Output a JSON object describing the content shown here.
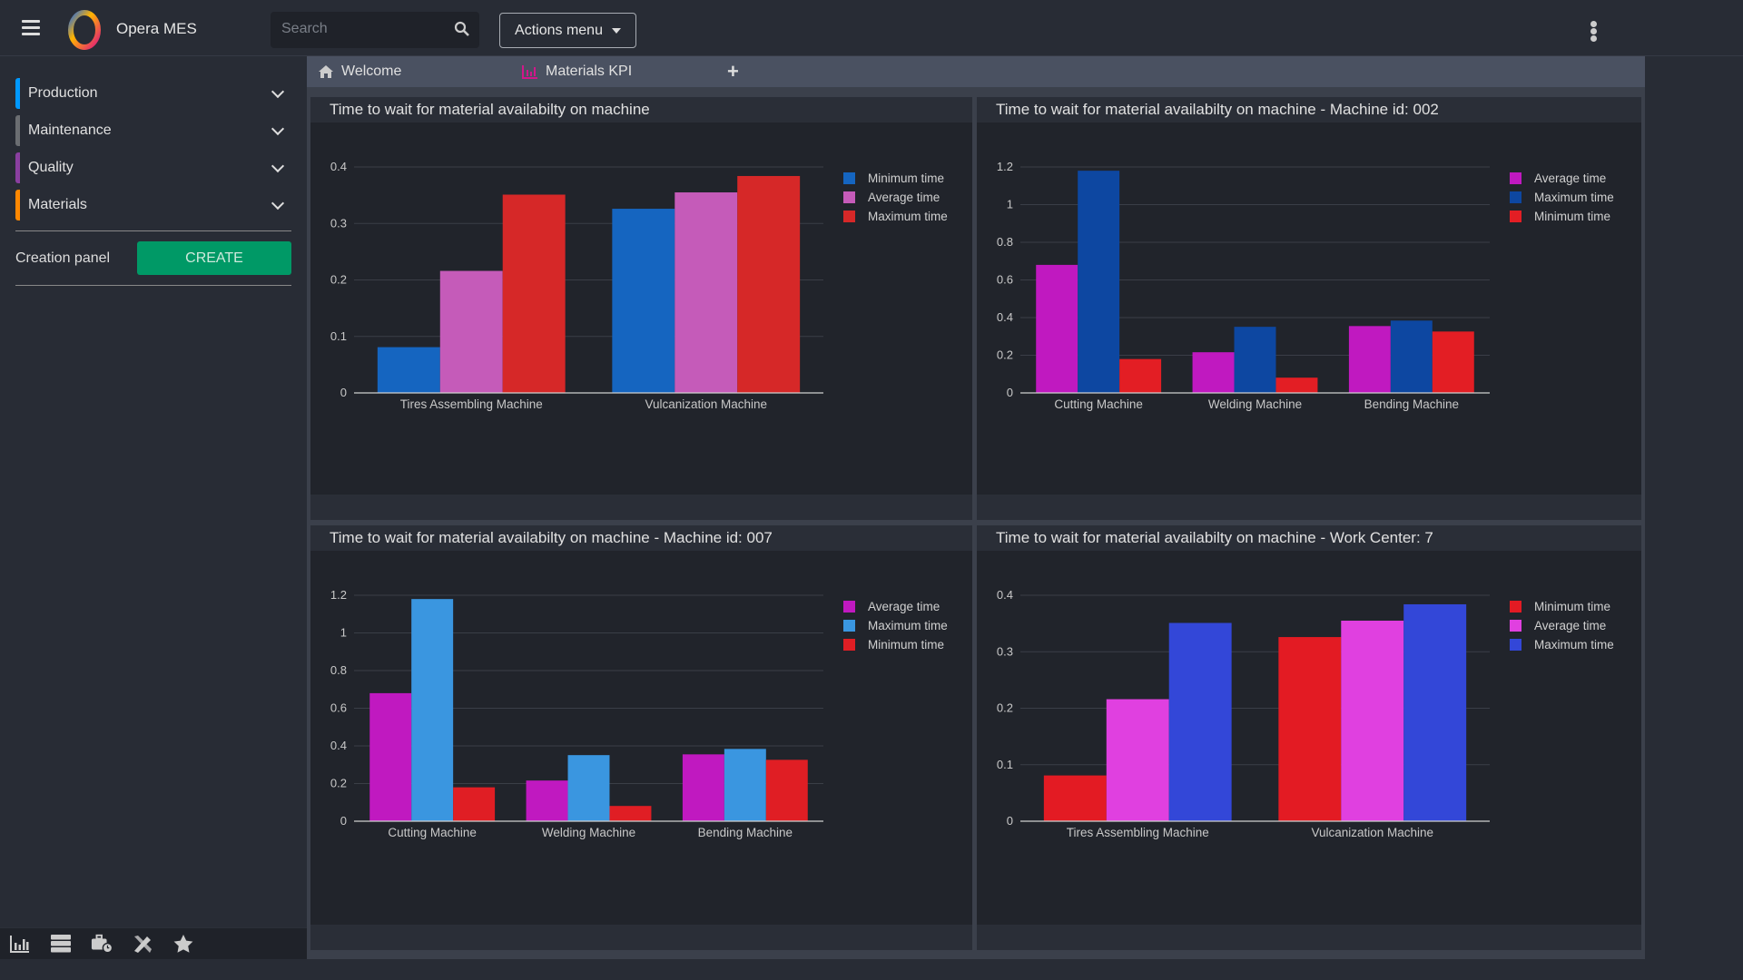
{
  "header": {
    "app_title": "Opera MES",
    "search_placeholder": "Search",
    "actions_label": "Actions menu"
  },
  "sidebar": {
    "items": [
      {
        "label": "Production",
        "color": "#0099ff"
      },
      {
        "label": "Maintenance",
        "color": "#6b6e72"
      },
      {
        "label": "Quality",
        "color": "#8a3fa0"
      },
      {
        "label": "Materials",
        "color": "#ff8800"
      }
    ],
    "creation_label": "Creation panel",
    "create_button": "CREATE"
  },
  "bottom_toolbar": {
    "icons": [
      "bar-chart-icon",
      "server-icon",
      "briefcase-clock-icon",
      "pencil-ruler-icon",
      "star-icon"
    ],
    "active": 0
  },
  "tabs": [
    {
      "label": "Welcome",
      "icon": "home-icon"
    },
    {
      "label": "Materials KPI",
      "icon": "bar-chart-icon"
    }
  ],
  "chart_data": [
    {
      "type": "bar",
      "title": "Time to wait for material availabilty on machine",
      "categories": [
        "Tires Assembling Machine",
        "Vulcanization Machine"
      ],
      "ylim": [
        0,
        0.4
      ],
      "yticks": [
        "0",
        "0.1",
        "0.2",
        "0.3",
        "0.4"
      ],
      "grid": true,
      "legend": "right",
      "series": [
        {
          "name": "Minimum time",
          "color": "#1565c0",
          "values": [
            0.081,
            0.326
          ]
        },
        {
          "name": "Average time",
          "color": "#c55bb9",
          "values": [
            0.216,
            0.355
          ]
        },
        {
          "name": "Maximum time",
          "color": "#d62828",
          "values": [
            0.351,
            0.384
          ]
        }
      ]
    },
    {
      "type": "bar",
      "title": "Time to wait for material availabilty on machine - Machine id: 002",
      "categories": [
        "Cutting Machine",
        "Welding Machine",
        "Bending Machine"
      ],
      "ylim": [
        0,
        1.2
      ],
      "yticks": [
        "0",
        "0.2",
        "0.4",
        "0.6",
        "0.8",
        "1",
        "1.2"
      ],
      "grid": true,
      "legend": "right",
      "series": [
        {
          "name": "Average time",
          "color": "#c019c0",
          "values": [
            0.68,
            0.216,
            0.355
          ]
        },
        {
          "name": "Maximum time",
          "color": "#0d47a1",
          "values": [
            1.18,
            0.351,
            0.384
          ]
        },
        {
          "name": "Minimum time",
          "color": "#e31e24",
          "values": [
            0.18,
            0.081,
            0.326
          ]
        }
      ]
    },
    {
      "type": "bar",
      "title": "Time to wait for material availabilty on machine - Machine id: 007",
      "categories": [
        "Cutting Machine",
        "Welding Machine",
        "Bending Machine"
      ],
      "ylim": [
        0,
        1.2
      ],
      "yticks": [
        "0",
        "0.2",
        "0.4",
        "0.6",
        "0.8",
        "1",
        "1.2"
      ],
      "grid": true,
      "legend": "right",
      "series": [
        {
          "name": "Average time",
          "color": "#c019c0",
          "values": [
            0.68,
            0.216,
            0.355
          ]
        },
        {
          "name": "Maximum time",
          "color": "#3a96e0",
          "values": [
            1.18,
            0.351,
            0.384
          ]
        },
        {
          "name": "Minimum time",
          "color": "#e01e24",
          "values": [
            0.18,
            0.081,
            0.326
          ]
        }
      ]
    },
    {
      "type": "bar",
      "title": "Time to wait for material availabilty on machine - Work Center: 7",
      "categories": [
        "Tires Assembling Machine",
        "Vulcanization Machine"
      ],
      "ylim": [
        0,
        0.4
      ],
      "yticks": [
        "0",
        "0.1",
        "0.2",
        "0.3",
        "0.4"
      ],
      "grid": true,
      "legend": "right",
      "series": [
        {
          "name": "Minimum time",
          "color": "#e31b23",
          "values": [
            0.081,
            0.326
          ]
        },
        {
          "name": "Average time",
          "color": "#e040e0",
          "values": [
            0.216,
            0.355
          ]
        },
        {
          "name": "Maximum time",
          "color": "#3347d8",
          "values": [
            0.351,
            0.384
          ]
        }
      ]
    }
  ]
}
